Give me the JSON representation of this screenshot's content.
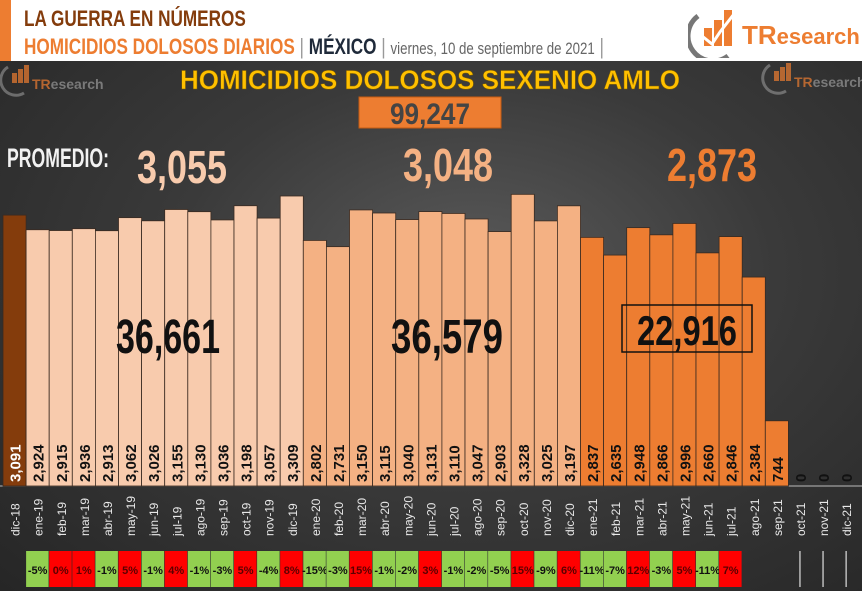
{
  "header": {
    "title": "LA GUERRA EN NÚMEROS",
    "subtitle": "HOMICIDIOS DOLOSOS DIARIOS",
    "separator": "|",
    "country": "MÉXICO",
    "date": "viernes, 10 de septiembre de 2021",
    "logo_text": "TResearch"
  },
  "colors": {
    "accent": "#ed7d31",
    "dark_brown": "#843c0c",
    "y2019": "#f8cbad",
    "y2020": "#f4b183",
    "y2021": "#ed7d31",
    "pct_up": "#ff0000",
    "pct_down": "#92d050",
    "title_yellow": "#ffc000"
  },
  "chart_data": {
    "type": "bar",
    "title": "HOMICIDIOS DOLOSOS SEXENIO AMLO",
    "grand_total": "99,247",
    "promedio_label": "PROMEDIO:",
    "promedios": [
      "3,055",
      "3,048",
      "2,873"
    ],
    "period_totals": [
      "36,661",
      "36,579",
      "22,916"
    ],
    "ylim": [
      0,
      3450
    ],
    "categories": [
      "dic-18",
      "ene-19",
      "feb-19",
      "mar-19",
      "abr-19",
      "may-19",
      "jun-19",
      "jul-19",
      "ago-19",
      "sep-19",
      "oct-19",
      "nov-19",
      "dic-19",
      "ene-20",
      "feb-20",
      "mar-20",
      "abr-20",
      "may-20",
      "jun-20",
      "jul-20",
      "ago-20",
      "sep-20",
      "oct-20",
      "nov-20",
      "dic-20",
      "ene-21",
      "feb-21",
      "mar-21",
      "abr-21",
      "may-21",
      "jun-21",
      "jul-21",
      "ago-21",
      "sep-21",
      "oct-21",
      "nov-21",
      "dic-21"
    ],
    "values": [
      3091,
      2924,
      2915,
      2936,
      2913,
      3062,
      3026,
      3155,
      3130,
      3036,
      3198,
      3057,
      3309,
      2802,
      2731,
      3150,
      3115,
      3040,
      3131,
      3110,
      3047,
      2903,
      3328,
      3025,
      3197,
      2837,
      2635,
      2948,
      2866,
      2996,
      2660,
      2846,
      2384,
      744,
      0,
      0,
      0
    ],
    "value_labels": [
      "3,091",
      "2,924",
      "2,915",
      "2,936",
      "2,913",
      "3,062",
      "3,026",
      "3,155",
      "3,130",
      "3,036",
      "3,198",
      "3,057",
      "3,309",
      "2,802",
      "2,731",
      "3,150",
      "3,115",
      "3,040",
      "3,131",
      "3,110",
      "3,047",
      "2,903",
      "3,328",
      "3,025",
      "3,197",
      "2,837",
      "2,635",
      "2,948",
      "2,866",
      "2,996",
      "2,660",
      "2,846",
      "2,384",
      "744",
      "0",
      "0",
      "0"
    ],
    "monthly_change": [
      "-5%",
      "0%",
      "1%",
      "-1%",
      "5%",
      "-1%",
      "4%",
      "-1%",
      "-3%",
      "5%",
      "-4%",
      "8%",
      "-15%",
      "-3%",
      "15%",
      "-1%",
      "-2%",
      "3%",
      "-1%",
      "-2%",
      "-5%",
      "15%",
      "-9%",
      "6%",
      "-11%",
      "-7%",
      "12%",
      "-3%",
      "5%",
      "-11%",
      "7%"
    ],
    "monthly_change_values": [
      -5,
      0,
      1,
      -1,
      5,
      -1,
      4,
      -1,
      -3,
      5,
      -4,
      8,
      -15,
      -3,
      15,
      -1,
      -2,
      3,
      -1,
      -2,
      -5,
      15,
      -9,
      6,
      -11,
      -7,
      12,
      -3,
      5,
      -11,
      7
    ]
  }
}
